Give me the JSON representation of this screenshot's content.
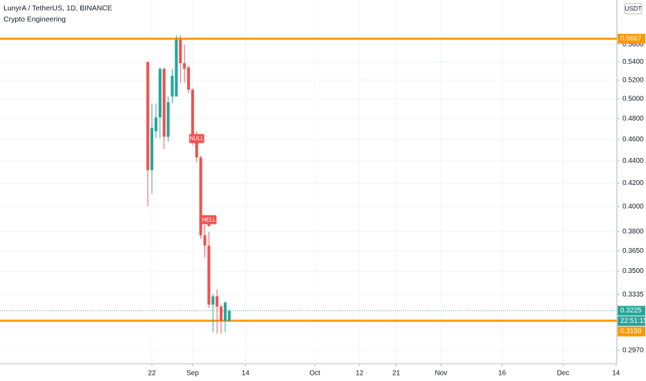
{
  "chart_data": {
    "type": "candlestick",
    "title": "LunyrA / TetherUS, 1D, BINANCE",
    "subtitle": "Crypto Engineering",
    "currency": "USDT",
    "countdown": "22:51:15",
    "log": true,
    "grid": true,
    "up_color": "#26a69a",
    "down_color": "#ef5350",
    "level_color": "#ff9800",
    "x": [
      -1,
      0,
      1,
      2,
      3,
      4,
      5,
      6,
      7,
      8,
      9,
      10,
      11,
      12,
      13,
      14,
      15,
      16,
      17,
      18,
      19
    ],
    "open": [
      0.5401,
      0.4316,
      0.4678,
      0.4814,
      0.5324,
      0.4625,
      0.5027,
      0.5027,
      0.5655,
      0.5386,
      0.5339,
      0.5099,
      0.4611,
      0.443,
      0.3771,
      0.3691,
      0.3266,
      0.3323,
      0.3253,
      0.3159,
      0.3159
    ],
    "high": [
      0.5401,
      0.4955,
      0.4955,
      0.5339,
      0.5339,
      0.5027,
      0.5324,
      0.5705,
      0.5705,
      0.5598,
      0.5362,
      0.5114,
      0.4678,
      0.4449,
      0.3853,
      0.3798,
      0.3338,
      0.3371,
      0.3266,
      0.329,
      0.3234
    ],
    "low": [
      0.4006,
      0.4111,
      0.4611,
      0.4611,
      0.4507,
      0.4579,
      0.4955,
      0.5027,
      0.5173,
      0.5173,
      0.5063,
      0.4546,
      0.4386,
      0.3744,
      0.3602,
      0.3243,
      0.3084,
      0.3076,
      0.3076,
      0.3084,
      0.3151
    ],
    "close": [
      0.4316,
      0.4712,
      0.4814,
      0.5324,
      0.4625,
      0.4969,
      0.5248,
      0.5655,
      0.5386,
      0.5324,
      0.5099,
      0.4611,
      0.443,
      0.3771,
      0.3691,
      0.3266,
      0.3323,
      0.3253,
      0.3159,
      0.328,
      0.3225
    ],
    "levels": [
      0.5667,
      0.3159
    ],
    "annotations": [
      {
        "label": "NULL",
        "x": 11
      },
      {
        "label": "HELL",
        "x": 14
      }
    ],
    "xlim": [
      -37.3,
      114.2
    ],
    "ylim": [
      0.289,
      0.614
    ],
    "yticks": [
      {
        "value": 0.56,
        "label": "0.5600"
      },
      {
        "value": 0.54,
        "label": "0.5400"
      },
      {
        "value": 0.52,
        "label": "0.5200"
      },
      {
        "value": 0.5,
        "label": "0.5000"
      },
      {
        "value": 0.48,
        "label": "0.4800"
      },
      {
        "value": 0.46,
        "label": "0.4600"
      },
      {
        "value": 0.44,
        "label": "0.4400"
      },
      {
        "value": 0.42,
        "label": "0.4200"
      },
      {
        "value": 0.4,
        "label": "0.4000"
      },
      {
        "value": 0.38,
        "label": "0.3800"
      },
      {
        "value": 0.365,
        "label": "0.3650"
      },
      {
        "value": 0.35,
        "label": "0.3500"
      },
      0.3335,
      {
        "value": 0.297,
        "label": "0.2970"
      }
    ],
    "xticks": [
      {
        "value": 0,
        "label": "22"
      },
      {
        "value": 10,
        "label": "Sep"
      },
      {
        "value": 23,
        "label": "14"
      },
      {
        "value": 40,
        "label": "Oct"
      },
      {
        "value": 51,
        "label": "12"
      },
      {
        "value": 60,
        "label": "21"
      },
      {
        "value": 71,
        "label": "Nov"
      },
      {
        "value": 86,
        "label": "16"
      },
      {
        "value": 101,
        "label": "Dec"
      },
      {
        "value": 114,
        "label": "14"
      }
    ]
  }
}
